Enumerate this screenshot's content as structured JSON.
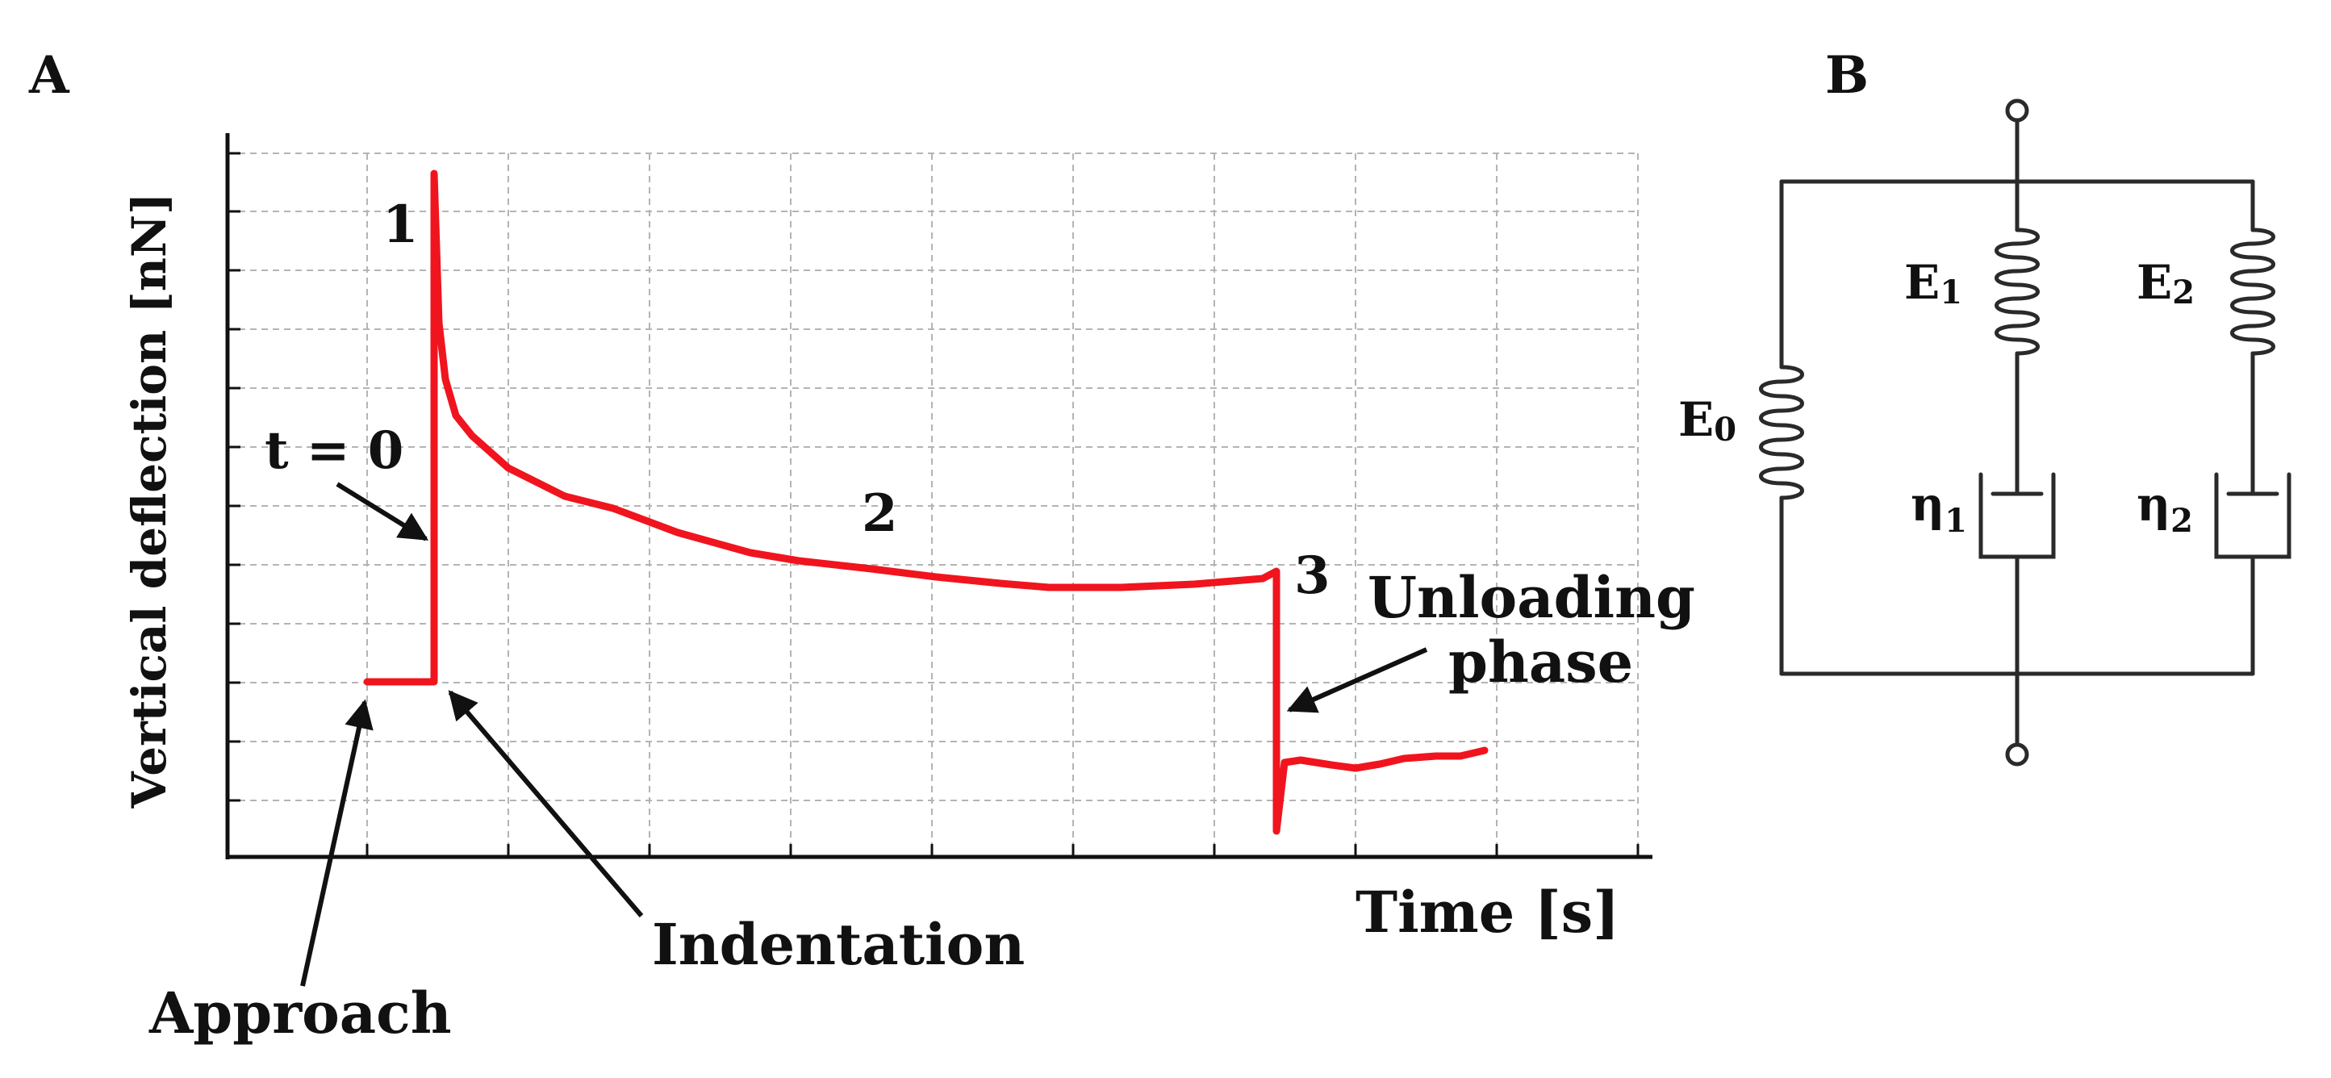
{
  "panels": {
    "a": {
      "letter": "A"
    },
    "b": {
      "letter": "B"
    }
  },
  "chart": {
    "ylabel": "Vertical deflection [nN]",
    "xlabel": "Time [s]",
    "markers": {
      "m1": "1",
      "t0": "t = 0",
      "m2": "2",
      "m3": "3"
    },
    "annotations": {
      "unloading_line1": "Unloading",
      "unloading_line2": "phase",
      "indentation": "Indentation",
      "approach": "Approach"
    },
    "colors": {
      "curve": "#f0141e",
      "grid": "#b4b4b4",
      "axis": "#111111"
    }
  },
  "circuit": {
    "e0": {
      "base": "E",
      "sub": "0"
    },
    "e1": {
      "base": "E",
      "sub": "1"
    },
    "e2": {
      "base": "E",
      "sub": "2"
    },
    "eta1": {
      "base": "η",
      "sub": "1"
    },
    "eta2": {
      "base": "η",
      "sub": "2"
    },
    "colors": {
      "wire": "#2a2a2a"
    }
  }
}
